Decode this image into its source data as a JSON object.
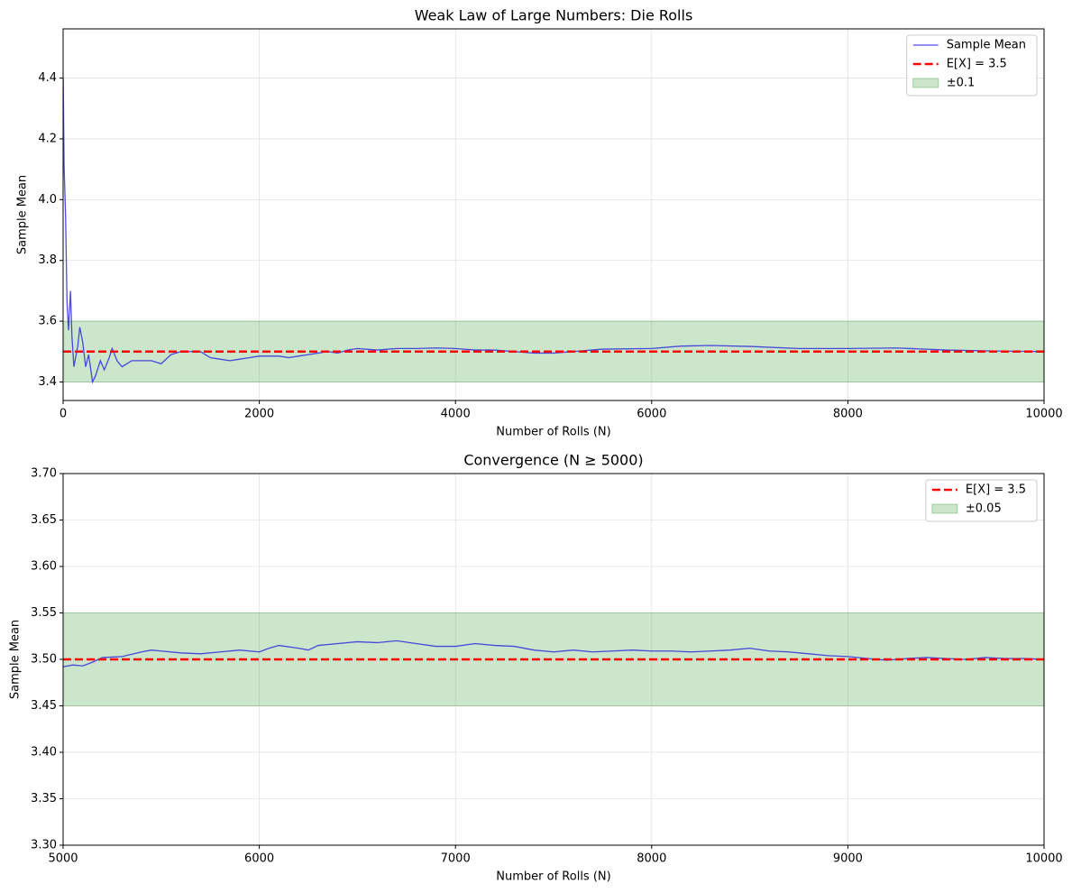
{
  "chart_data": [
    {
      "type": "line",
      "title": "Weak Law of Large Numbers: Die Rolls",
      "xlabel": "Number of Rolls (N)",
      "ylabel": "Sample Mean",
      "x": [
        1,
        10,
        25,
        40,
        55,
        75,
        90,
        110,
        150,
        170,
        200,
        230,
        260,
        300,
        330,
        380,
        420,
        470,
        500,
        550,
        600,
        700,
        800,
        900,
        1000,
        1100,
        1200,
        1300,
        1400,
        1500,
        1600,
        1700,
        1800,
        1900,
        2000,
        2100,
        2200,
        2300,
        2400,
        2500,
        2600,
        2700,
        2800,
        2900,
        3000,
        3200,
        3400,
        3600,
        3800,
        4000,
        4200,
        4400,
        4600,
        4800,
        5000,
        5200,
        5500,
        6000,
        6300,
        6600,
        7000,
        7500,
        8000,
        8500,
        9000,
        9500,
        10000
      ],
      "series": [
        {
          "name": "Sample Mean",
          "color": "#2222dd",
          "values": [
            4.4,
            4.11,
            3.95,
            3.66,
            3.57,
            3.7,
            3.55,
            3.45,
            3.52,
            3.58,
            3.53,
            3.45,
            3.49,
            3.4,
            3.42,
            3.47,
            3.44,
            3.48,
            3.51,
            3.47,
            3.45,
            3.47,
            3.47,
            3.47,
            3.46,
            3.49,
            3.5,
            3.5,
            3.5,
            3.48,
            3.475,
            3.47,
            3.475,
            3.48,
            3.485,
            3.485,
            3.485,
            3.48,
            3.485,
            3.49,
            3.495,
            3.5,
            3.495,
            3.505,
            3.51,
            3.505,
            3.51,
            3.51,
            3.512,
            3.51,
            3.505,
            3.505,
            3.5,
            3.495,
            3.495,
            3.5,
            3.508,
            3.51,
            3.518,
            3.52,
            3.517,
            3.51,
            3.51,
            3.512,
            3.505,
            3.502,
            3.5
          ]
        }
      ],
      "hlines": [
        {
          "name": "E[X] = 3.5",
          "color": "red",
          "value": 3.5
        }
      ],
      "bands": [
        {
          "name": "±0.1",
          "color": "green",
          "lower": 3.4,
          "upper": 3.6
        }
      ],
      "xlim": [
        0,
        10000
      ],
      "xticks": [
        0,
        2000,
        4000,
        6000,
        8000,
        10000
      ],
      "ylim": [
        3.339,
        4.562
      ],
      "yticks": [
        3.4,
        3.6,
        3.8,
        {
          "value": 4,
          "label": "4.0"
        },
        4.2,
        4.4
      ],
      "grid": true,
      "legend": "upper right"
    },
    {
      "type": "line",
      "title": "Convergence (N ≥ 5000)",
      "xlabel": "Number of Rolls (N)",
      "ylabel": "Sample Mean",
      "x": [
        5000,
        5050,
        5100,
        5150,
        5200,
        5300,
        5400,
        5450,
        5500,
        5600,
        5700,
        5800,
        5900,
        6000,
        6050,
        6100,
        6200,
        6250,
        6300,
        6400,
        6500,
        6600,
        6700,
        6800,
        6900,
        7000,
        7100,
        7200,
        7300,
        7400,
        7500,
        7600,
        7700,
        7800,
        7900,
        8000,
        8100,
        8200,
        8300,
        8400,
        8500,
        8600,
        8700,
        8800,
        8900,
        9000,
        9100,
        9200,
        9300,
        9400,
        9500,
        9600,
        9700,
        9800,
        9900,
        10000
      ],
      "series": [
        {
          "color": "#2222dd",
          "values": [
            3.492,
            3.494,
            3.493,
            3.497,
            3.502,
            3.503,
            3.508,
            3.51,
            3.509,
            3.507,
            3.506,
            3.508,
            3.51,
            3.508,
            3.512,
            3.515,
            3.512,
            3.51,
            3.515,
            3.517,
            3.519,
            3.518,
            3.52,
            3.517,
            3.514,
            3.514,
            3.517,
            3.515,
            3.514,
            3.51,
            3.508,
            3.51,
            3.508,
            3.509,
            3.51,
            3.509,
            3.509,
            3.508,
            3.509,
            3.51,
            3.512,
            3.509,
            3.508,
            3.506,
            3.504,
            3.503,
            3.501,
            3.499,
            3.501,
            3.502,
            3.501,
            3.5,
            3.502,
            3.501,
            3.501,
            3.5
          ]
        }
      ],
      "hlines": [
        {
          "name": "E[X] = 3.5",
          "color": "red",
          "value": 3.5
        }
      ],
      "bands": [
        {
          "name": "±0.05",
          "color": "green",
          "lower": 3.45,
          "upper": 3.55
        }
      ],
      "xlim": [
        5000,
        10000
      ],
      "xticks": [
        5000,
        6000,
        7000,
        8000,
        9000,
        10000
      ],
      "ylim": [
        3.3,
        3.7
      ],
      "yticks": [
        {
          "value": 3.3,
          "label": "3.30"
        },
        3.35,
        {
          "value": 3.4,
          "label": "3.40"
        },
        3.45,
        {
          "value": 3.5,
          "label": "3.50"
        },
        3.55,
        {
          "value": 3.6,
          "label": "3.60"
        },
        3.65,
        {
          "value": 3.7,
          "label": "3.70"
        }
      ],
      "grid": true,
      "legend": "upper right"
    }
  ]
}
